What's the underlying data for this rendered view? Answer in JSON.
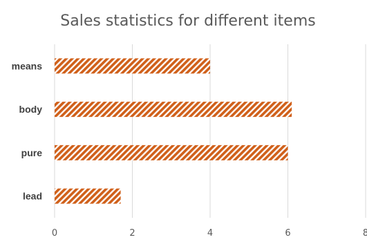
{
  "chart_data": {
    "type": "bar",
    "orientation": "horizontal",
    "title": "Sales statistics for different items",
    "categories": [
      "means",
      "body",
      "pure",
      "lead"
    ],
    "values": [
      4.0,
      6.1,
      6.0,
      1.7
    ],
    "xlabel": "",
    "ylabel": "",
    "xlim": [
      0,
      8
    ],
    "xticks": [
      "0",
      "2",
      "4",
      "6",
      "8"
    ],
    "grid": "vertical",
    "legend": "none",
    "bar_color": "#d0601a",
    "bar_pattern": "diagonal-hatch"
  }
}
